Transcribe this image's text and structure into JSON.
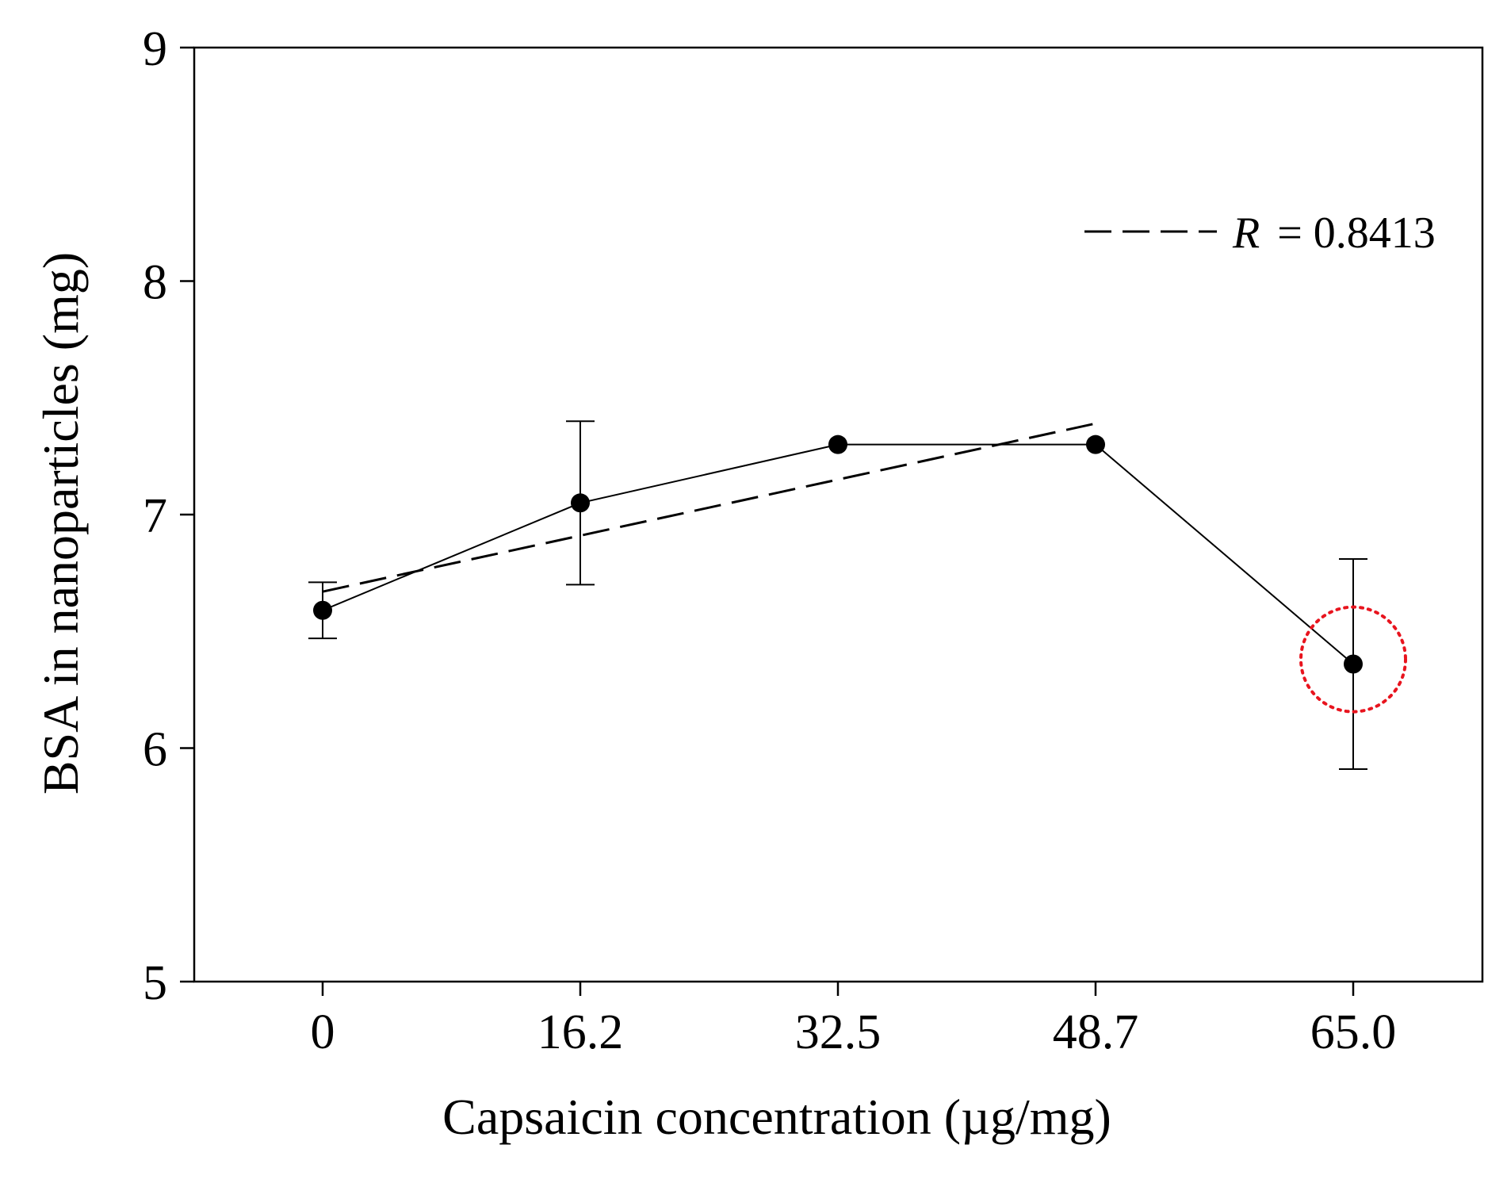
{
  "chart_data": {
    "type": "line",
    "title": "",
    "xlabel": "Capsaicin concentration (µg/mg)",
    "ylabel": "BSA in nanoparticles (mg)",
    "categories": [
      "0",
      "16.2",
      "32.5",
      "48.7",
      "65.0"
    ],
    "x": [
      0,
      16.2,
      32.5,
      48.7,
      65.0
    ],
    "ylim": [
      5,
      9
    ],
    "yticks": [
      "5",
      "6",
      "7",
      "8",
      "9"
    ],
    "grid": false,
    "series": [
      {
        "name": "BSA",
        "values": [
          6.59,
          7.05,
          7.3,
          7.3,
          6.36
        ],
        "error": [
          0.12,
          0.35,
          0,
          0,
          0.45
        ]
      }
    ],
    "trendline": {
      "style": "dashed",
      "label_prefix": "R",
      "label_value": "= 0.8413",
      "start": [
        0,
        6.67
      ],
      "end": [
        48.7,
        7.39
      ]
    },
    "highlight": {
      "x": 65.0,
      "y": 6.38,
      "color": "#e8141e",
      "style": "dotted"
    },
    "legend_position": "top-right"
  }
}
